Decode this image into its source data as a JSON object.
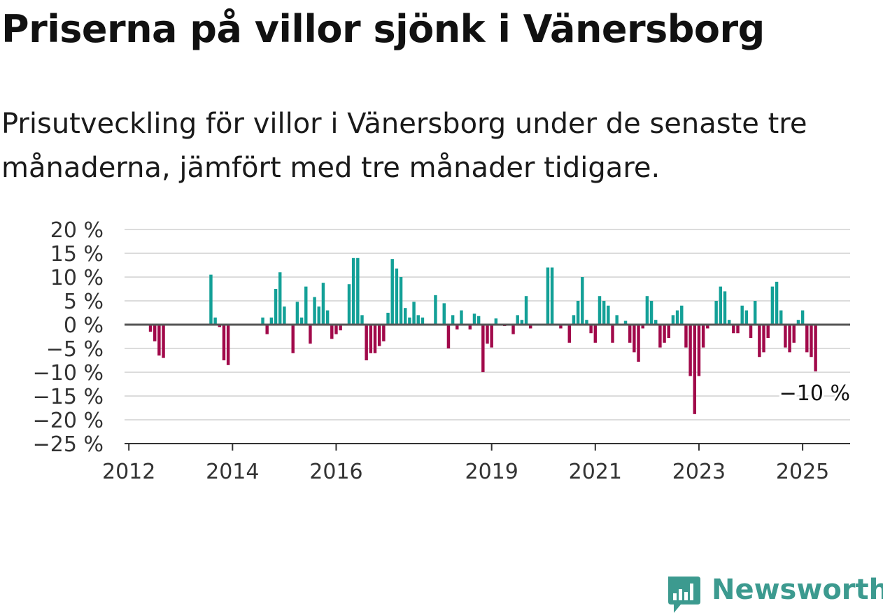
{
  "title": "Priserna på villor sjönk i Vänersborg",
  "subtitle": "Prisutveckling för villor i Vänersborg under de senaste tre månaderna, jämfört med tre månader tidigare.",
  "brand": {
    "name": "Newsworthy",
    "icon": "newsworthy-chart-icon",
    "color": "#3c9a8f"
  },
  "colors": {
    "positive": "#13a097",
    "negative": "#a1094a",
    "grid": "#dcdcdc",
    "zero": "#555555"
  },
  "chart_data": {
    "type": "bar",
    "x_label_years": [
      "2012",
      "2014",
      "2016",
      "2019",
      "2021",
      "2023",
      "2025"
    ],
    "y_ticks": [
      "20 %",
      "15 %",
      "10 %",
      "5 %",
      "0 %",
      "−5 %",
      "−10 %",
      "−15 %",
      "−20 %",
      "−25 %"
    ],
    "ylim": [
      -25,
      20
    ],
    "xlim": [
      "2011-12",
      "2025-12"
    ],
    "grid": true,
    "annotation": {
      "label": "−10 %",
      "value": -10
    },
    "series": [
      {
        "points": [
          [
            "2012-06",
            -1.5
          ],
          [
            "2012-07",
            -3.5
          ],
          [
            "2012-08",
            -6.5
          ],
          [
            "2012-09",
            -7.0
          ],
          [
            "2013-08",
            10.5
          ],
          [
            "2013-09",
            1.5
          ],
          [
            "2013-10",
            -0.5
          ],
          [
            "2013-11",
            -7.5
          ],
          [
            "2013-12",
            -8.5
          ],
          [
            "2014-08",
            1.5
          ],
          [
            "2014-09",
            -2.0
          ],
          [
            "2014-10",
            1.5
          ],
          [
            "2014-11",
            7.5
          ],
          [
            "2014-12",
            11.0
          ],
          [
            "2015-01",
            3.8
          ],
          [
            "2015-03",
            -6.0
          ],
          [
            "2015-04",
            4.8
          ],
          [
            "2015-05",
            1.5
          ],
          [
            "2015-06",
            8.0
          ],
          [
            "2015-07",
            -4.0
          ],
          [
            "2015-08",
            5.8
          ],
          [
            "2015-09",
            3.8
          ],
          [
            "2015-10",
            8.8
          ],
          [
            "2015-11",
            3.0
          ],
          [
            "2015-12",
            -3.0
          ],
          [
            "2016-01",
            -2.0
          ],
          [
            "2016-02",
            -1.2
          ],
          [
            "2016-04",
            8.5
          ],
          [
            "2016-05",
            14.0
          ],
          [
            "2016-06",
            14.0
          ],
          [
            "2016-07",
            2.0
          ],
          [
            "2016-08",
            -7.5
          ],
          [
            "2016-09",
            -6.0
          ],
          [
            "2016-10",
            -6.0
          ],
          [
            "2016-11",
            -4.5
          ],
          [
            "2016-12",
            -3.5
          ],
          [
            "2017-01",
            2.5
          ],
          [
            "2017-02",
            13.8
          ],
          [
            "2017-03",
            11.8
          ],
          [
            "2017-04",
            10.0
          ],
          [
            "2017-05",
            3.5
          ],
          [
            "2017-06",
            1.5
          ],
          [
            "2017-07",
            4.8
          ],
          [
            "2017-08",
            2.0
          ],
          [
            "2017-09",
            1.5
          ],
          [
            "2017-12",
            6.2
          ],
          [
            "2018-02",
            4.5
          ],
          [
            "2018-03",
            -5.0
          ],
          [
            "2018-04",
            2.0
          ],
          [
            "2018-05",
            -1.0
          ],
          [
            "2018-06",
            3.0
          ],
          [
            "2018-08",
            -1.0
          ],
          [
            "2018-09",
            2.3
          ],
          [
            "2018-10",
            1.8
          ],
          [
            "2018-11",
            -10.0
          ],
          [
            "2018-12",
            -4.0
          ],
          [
            "2019-01",
            -4.8
          ],
          [
            "2019-02",
            1.3
          ],
          [
            "2019-04",
            -0.3
          ],
          [
            "2019-06",
            -2.0
          ],
          [
            "2019-07",
            2.0
          ],
          [
            "2019-08",
            1.0
          ],
          [
            "2019-09",
            6.0
          ],
          [
            "2019-10",
            -0.8
          ],
          [
            "2020-01",
            -0.2
          ],
          [
            "2020-02",
            12.0
          ],
          [
            "2020-03",
            12.0
          ],
          [
            "2020-05",
            -0.8
          ],
          [
            "2020-07",
            -3.8
          ],
          [
            "2020-08",
            2.0
          ],
          [
            "2020-09",
            5.0
          ],
          [
            "2020-10",
            10.0
          ],
          [
            "2020-11",
            1.0
          ],
          [
            "2020-12",
            -1.8
          ],
          [
            "2021-01",
            -3.8
          ],
          [
            "2021-02",
            6.0
          ],
          [
            "2021-03",
            5.0
          ],
          [
            "2021-04",
            4.0
          ],
          [
            "2021-05",
            -3.8
          ],
          [
            "2021-06",
            2.0
          ],
          [
            "2021-08",
            0.8
          ],
          [
            "2021-09",
            -3.8
          ],
          [
            "2021-10",
            -5.8
          ],
          [
            "2021-11",
            -7.8
          ],
          [
            "2021-12",
            -0.8
          ],
          [
            "2022-01",
            6.0
          ],
          [
            "2022-02",
            5.0
          ],
          [
            "2022-03",
            1.0
          ],
          [
            "2022-04",
            -4.8
          ],
          [
            "2022-05",
            -3.8
          ],
          [
            "2022-06",
            -2.8
          ],
          [
            "2022-07",
            2.0
          ],
          [
            "2022-08",
            3.0
          ],
          [
            "2022-09",
            4.0
          ],
          [
            "2022-10",
            -4.8
          ],
          [
            "2022-11",
            -10.8
          ],
          [
            "2022-12",
            -18.8
          ],
          [
            "2023-01",
            -10.8
          ],
          [
            "2023-02",
            -4.8
          ],
          [
            "2023-03",
            -0.8
          ],
          [
            "2023-05",
            5.0
          ],
          [
            "2023-06",
            8.0
          ],
          [
            "2023-07",
            7.0
          ],
          [
            "2023-08",
            1.0
          ],
          [
            "2023-09",
            -1.8
          ],
          [
            "2023-10",
            -1.8
          ],
          [
            "2023-11",
            4.0
          ],
          [
            "2023-12",
            3.0
          ],
          [
            "2024-01",
            -2.8
          ],
          [
            "2024-02",
            5.0
          ],
          [
            "2024-03",
            -6.8
          ],
          [
            "2024-04",
            -5.8
          ],
          [
            "2024-05",
            -2.8
          ],
          [
            "2024-06",
            8.0
          ],
          [
            "2024-07",
            9.0
          ],
          [
            "2024-08",
            3.0
          ],
          [
            "2024-09",
            -4.8
          ],
          [
            "2024-10",
            -5.8
          ],
          [
            "2024-11",
            -3.8
          ],
          [
            "2024-12",
            1.0
          ],
          [
            "2025-01",
            3.0
          ],
          [
            "2025-02",
            -5.8
          ],
          [
            "2025-03",
            -6.8
          ],
          [
            "2025-04",
            -9.8
          ]
        ]
      }
    ]
  }
}
